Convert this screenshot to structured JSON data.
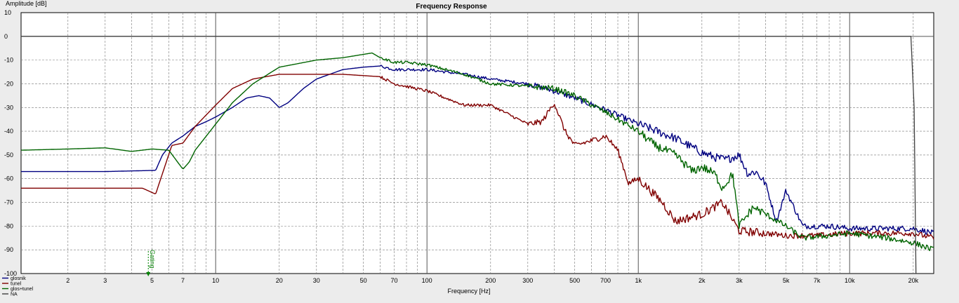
{
  "chart_data": {
    "type": "line",
    "title": "Frequency Response",
    "xlabel": "Frequency [Hz]",
    "ylabel": "Amplitude [dB]",
    "x_scale": "log",
    "xlim": [
      1.2,
      25000
    ],
    "ylim": [
      -100,
      10
    ],
    "grid": true,
    "legend_position": "bottom-left",
    "x_ticks": [
      2,
      3,
      5,
      7,
      10,
      20,
      30,
      50,
      70,
      100,
      200,
      300,
      500,
      700,
      1000,
      2000,
      3000,
      5000,
      7000,
      10000,
      20000
    ],
    "x_tick_labels": [
      "2",
      "3",
      "5",
      "7",
      "10",
      "20",
      "30",
      "50",
      "70",
      "100",
      "200",
      "300",
      "500",
      "700",
      "1k",
      "2k",
      "3k",
      "5k",
      "7k",
      "10k",
      "20k"
    ],
    "y_ticks": [
      10,
      0,
      -10,
      -20,
      -30,
      -40,
      -50,
      -60,
      -70,
      -80,
      -90,
      -100
    ],
    "marker": {
      "label": "Gating",
      "x": 4.8,
      "color": "#008000"
    },
    "series": [
      {
        "name": "glosnik",
        "color": "#000080",
        "x": [
          1.2,
          3,
          5.2,
          5.6,
          6.2,
          7,
          8,
          9,
          10,
          12,
          14,
          16,
          18,
          20,
          22,
          26,
          30,
          40,
          50,
          60,
          70,
          100,
          150,
          200,
          300,
          400,
          500,
          700,
          1000,
          1500,
          2000,
          2300,
          2600,
          3000,
          3300,
          3600,
          4000,
          4500,
          5000,
          6000,
          8000,
          10000,
          15000,
          20000,
          25000
        ],
        "y": [
          -57,
          -57,
          -56.5,
          -50,
          -45,
          -42,
          -38,
          -36,
          -34,
          -30,
          -26,
          -25,
          -26,
          -30,
          -28,
          -22,
          -18,
          -14,
          -13,
          -12.5,
          -14,
          -14,
          -16,
          -18,
          -20,
          -23,
          -26,
          -31,
          -37,
          -43,
          -49,
          -51,
          -52,
          -50,
          -58,
          -57,
          -62,
          -78,
          -65,
          -80,
          -80,
          -81,
          -81,
          -81,
          -83
        ]
      },
      {
        "name": "tunel",
        "color": "#800000",
        "x": [
          1.2,
          3,
          4.5,
          5.2,
          6.2,
          7,
          8,
          10,
          12,
          15,
          20,
          30,
          40,
          60,
          70,
          100,
          150,
          200,
          300,
          350,
          400,
          450,
          500,
          600,
          700,
          800,
          900,
          1000,
          1300,
          1500,
          2000,
          2500,
          3000,
          4000,
          5000,
          7000,
          10000,
          15000,
          20000,
          25000
        ],
        "y": [
          -64,
          -64,
          -64,
          -66.5,
          -46,
          -45,
          -38,
          -29,
          -22,
          -18,
          -16,
          -16,
          -16,
          -17,
          -20,
          -23,
          -29,
          -29,
          -37,
          -36,
          -28,
          -40,
          -46,
          -44,
          -42,
          -48,
          -62,
          -60,
          -70,
          -78,
          -75,
          -70,
          -82,
          -83,
          -84,
          -84,
          -83,
          -83,
          -83,
          -85
        ]
      },
      {
        "name": "glos+tunel",
        "color": "#006400",
        "x": [
          1.2,
          2,
          3,
          4,
          5,
          6,
          7,
          7.5,
          8,
          10,
          12,
          15,
          20,
          30,
          40,
          55,
          60,
          70,
          80,
          100,
          150,
          200,
          300,
          400,
          500,
          700,
          1000,
          1200,
          1500,
          1800,
          2000,
          2300,
          2500,
          2800,
          3000,
          3500,
          4000,
          5000,
          6000,
          8000,
          10000,
          15000,
          20000,
          25000
        ],
        "y": [
          -48,
          -47.5,
          -47,
          -48.5,
          -47.5,
          -48,
          -56,
          -53,
          -48,
          -37,
          -28,
          -20,
          -13,
          -10,
          -9,
          -7,
          -9,
          -11,
          -11,
          -12,
          -16,
          -20,
          -21,
          -22,
          -25,
          -32,
          -40,
          -46,
          -50,
          -57,
          -55,
          -58,
          -64,
          -58,
          -80,
          -72,
          -75,
          -80,
          -85,
          -84,
          -83,
          -85,
          -87,
          -90
        ]
      },
      {
        "name": "NA",
        "color": "#404040",
        "x": [
          1.2,
          10,
          100,
          1000,
          10000,
          19500,
          20200,
          20600
        ],
        "y": [
          0,
          0,
          0,
          0,
          0,
          0,
          -30,
          -100
        ]
      }
    ]
  }
}
